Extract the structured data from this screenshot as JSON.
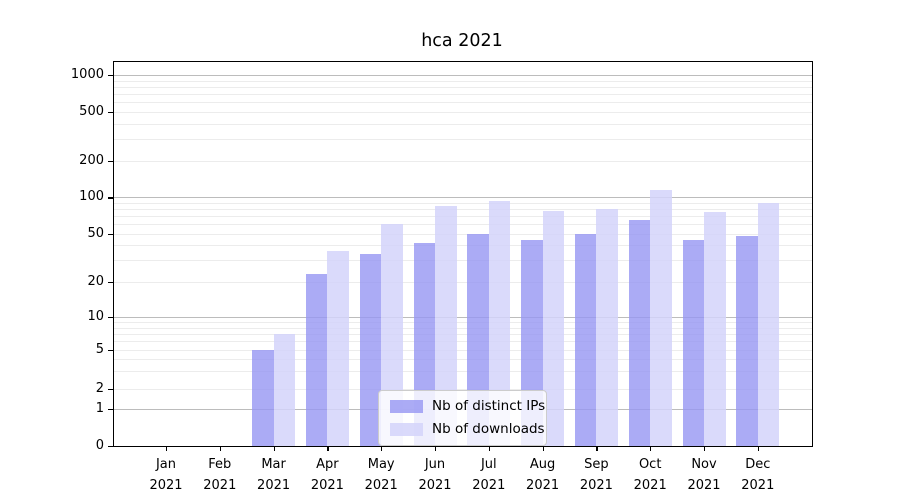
{
  "title": "hca 2021",
  "chart_data": {
    "type": "bar",
    "title": "hca 2021",
    "x": {
      "months": [
        "Jan",
        "Feb",
        "Mar",
        "Apr",
        "May",
        "Jun",
        "Jul",
        "Aug",
        "Sep",
        "Oct",
        "Nov",
        "Dec"
      ],
      "year": "2021"
    },
    "y_axis": {
      "scale": "symlog",
      "ticks": [
        0,
        1,
        2,
        5,
        10,
        20,
        50,
        100,
        200,
        500,
        1000
      ],
      "range": [
        0,
        1300
      ],
      "grid": "on"
    },
    "series": [
      {
        "name": "Nb of distinct IPs",
        "color": "rgba(150,150,243,0.8)",
        "values": [
          0,
          0,
          5,
          23,
          34,
          42,
          50,
          44,
          50,
          65,
          44,
          48
        ]
      },
      {
        "name": "Nb of downloads",
        "color": "rgba(212,212,250,0.85)",
        "values": [
          0,
          0,
          7,
          36,
          60,
          84,
          94,
          77,
          80,
          115,
          75,
          89
        ]
      }
    ],
    "legend": {
      "position": "lower-center-inside",
      "entries": [
        "Nb of distinct IPs",
        "Nb of downloads"
      ]
    }
  }
}
